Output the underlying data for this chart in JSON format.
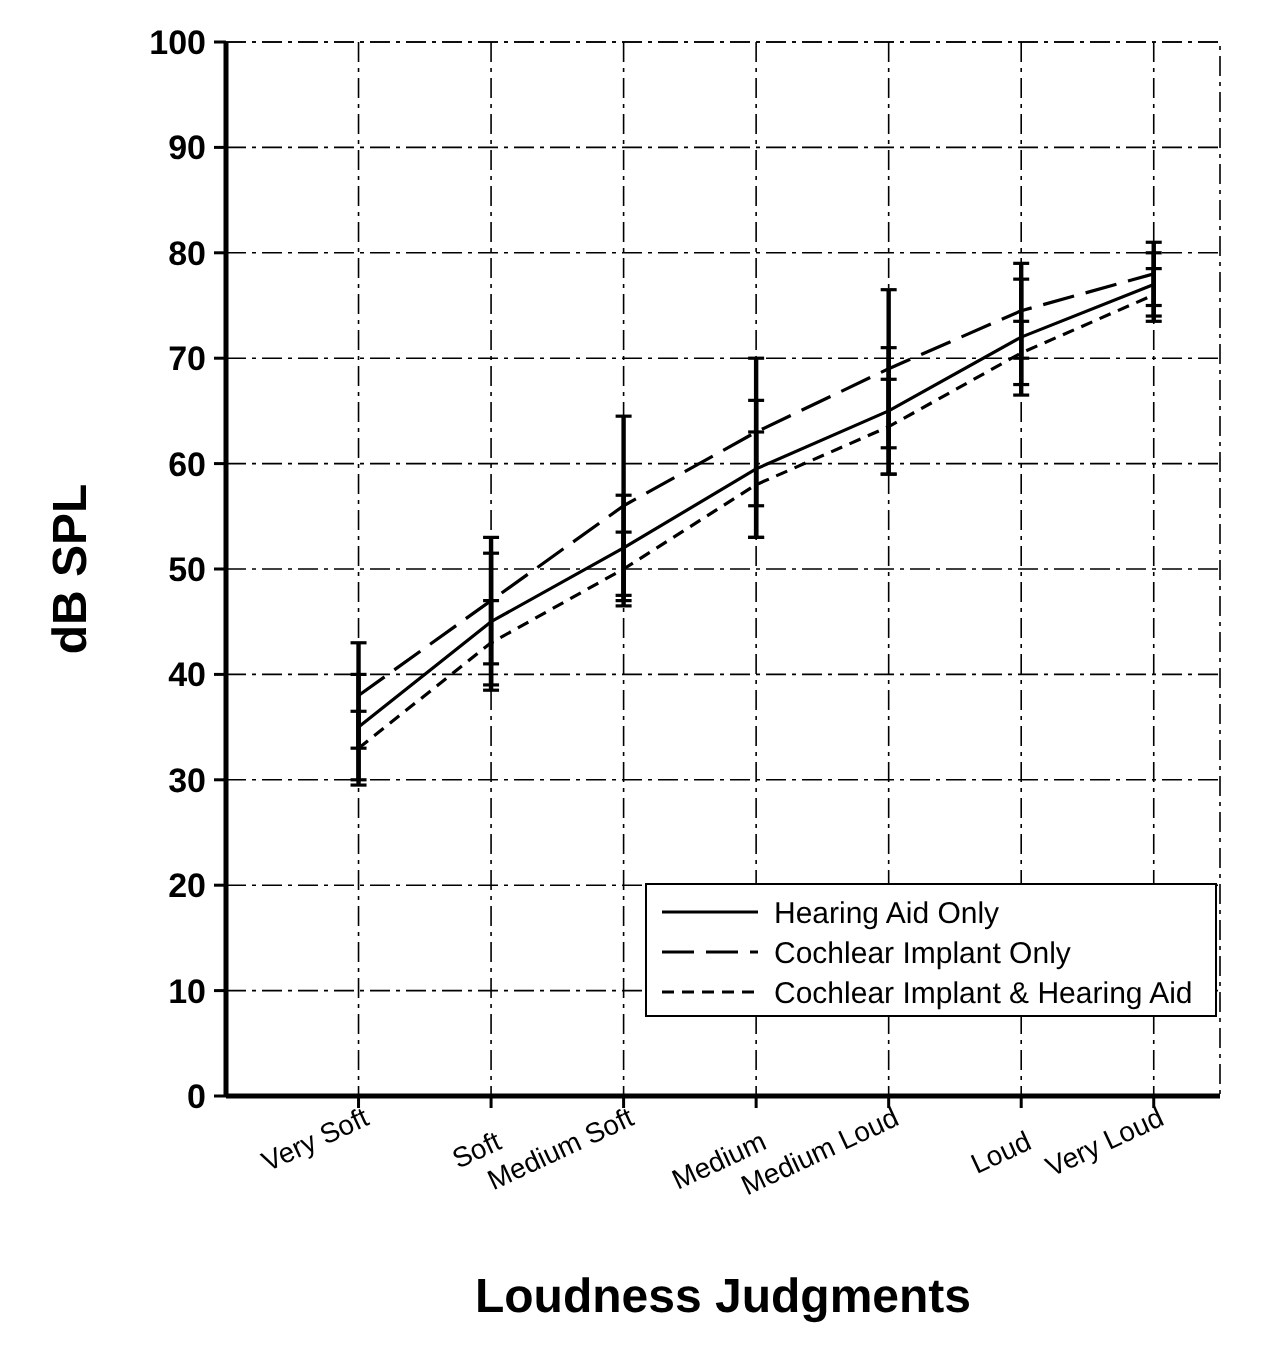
{
  "chart_data": {
    "type": "line",
    "xlabel": "Loudness Judgments",
    "ylabel": "dB SPL",
    "categories": [
      "Very Soft",
      "Soft",
      "Medium Soft",
      "Medium",
      "Medium Loud",
      "Loud",
      "Very Loud"
    ],
    "series": [
      {
        "name": "Hearing Aid Only",
        "color": "#000000",
        "line_style": "solid",
        "values": [
          35,
          45,
          52,
          59.5,
          65,
          72,
          77
        ],
        "errors": [
          5,
          6.5,
          5,
          6.5,
          6,
          5.5,
          3
        ]
      },
      {
        "name": "Cochlear Implant Only",
        "color": "#000000",
        "line_style": "dashed",
        "values": [
          38,
          47,
          56,
          63,
          69,
          74.5,
          78
        ],
        "errors": [
          5,
          6,
          8.5,
          7,
          7.5,
          4.5,
          3
        ]
      },
      {
        "name": "Cochlear Implant & Hearing Aid",
        "color": "#000000",
        "line_style": "dotted",
        "values": [
          33,
          43,
          50,
          58,
          63.5,
          70.5,
          76
        ],
        "errors": [
          3.5,
          4,
          3.5,
          5,
          4.5,
          3,
          2.5
        ]
      }
    ],
    "ylim": [
      0,
      100
    ],
    "yticks": [
      0,
      10,
      20,
      30,
      40,
      50,
      60,
      70,
      80,
      90,
      100
    ],
    "grid": true,
    "legend": "bottom right",
    "marker": "none"
  }
}
